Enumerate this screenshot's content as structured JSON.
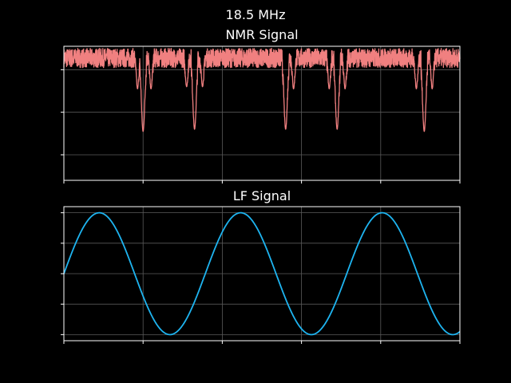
{
  "figure": {
    "suptitle": "18.5 MHz"
  },
  "chart_data": [
    {
      "type": "line",
      "title": "NMR Signal",
      "xlabel": "",
      "ylabel": "",
      "xlim": [
        0,
        5
      ],
      "ylim": [
        -2.6,
        0.55
      ],
      "grid": true,
      "tick_labels_visible": false,
      "x_ticks": [
        0,
        1,
        2,
        3,
        4,
        5
      ],
      "y_ticks": [
        -2,
        -1,
        0
      ],
      "series": [
        {
          "color": "#f08080",
          "baseline_noise_band": [
            0.05,
            0.5
          ],
          "dips": [
            {
              "x": 0.93,
              "min": -0.45,
              "width": 0.022
            },
            {
              "x": 1.0,
              "min": -1.45,
              "width": 0.03
            },
            {
              "x": 1.1,
              "min": -0.45,
              "width": 0.022
            },
            {
              "x": 1.55,
              "min": -0.4,
              "width": 0.022
            },
            {
              "x": 1.65,
              "min": -1.4,
              "width": 0.03
            },
            {
              "x": 1.75,
              "min": -0.4,
              "width": 0.022
            },
            {
              "x": 2.8,
              "min": -0.4,
              "width": 0.022
            },
            {
              "x": 2.8,
              "min": -1.4,
              "width": 0.03
            },
            {
              "x": 2.9,
              "min": -0.45,
              "width": 0.022
            },
            {
              "x": 3.35,
              "min": -0.45,
              "width": 0.022
            },
            {
              "x": 3.45,
              "min": -1.4,
              "width": 0.03
            },
            {
              "x": 3.55,
              "min": -0.45,
              "width": 0.022
            },
            {
              "x": 4.45,
              "min": -0.45,
              "width": 0.022
            },
            {
              "x": 4.55,
              "min": -1.45,
              "width": 0.03
            },
            {
              "x": 4.65,
              "min": -0.45,
              "width": 0.022
            }
          ]
        }
      ]
    },
    {
      "type": "line",
      "title": "LF Signal",
      "xlabel": "",
      "ylabel": "",
      "xlim": [
        0,
        5
      ],
      "ylim": [
        -1.1,
        1.1
      ],
      "grid": true,
      "tick_labels_visible": false,
      "x_ticks": [
        0,
        1,
        2,
        3,
        4,
        5
      ],
      "y_ticks": [
        -1,
        -0.5,
        0,
        0.5,
        1
      ],
      "series": [
        {
          "color": "#1eb4f0",
          "function": "sine",
          "amplitude": 1,
          "frequency": 0.56,
          "phase": 0
        }
      ]
    }
  ]
}
